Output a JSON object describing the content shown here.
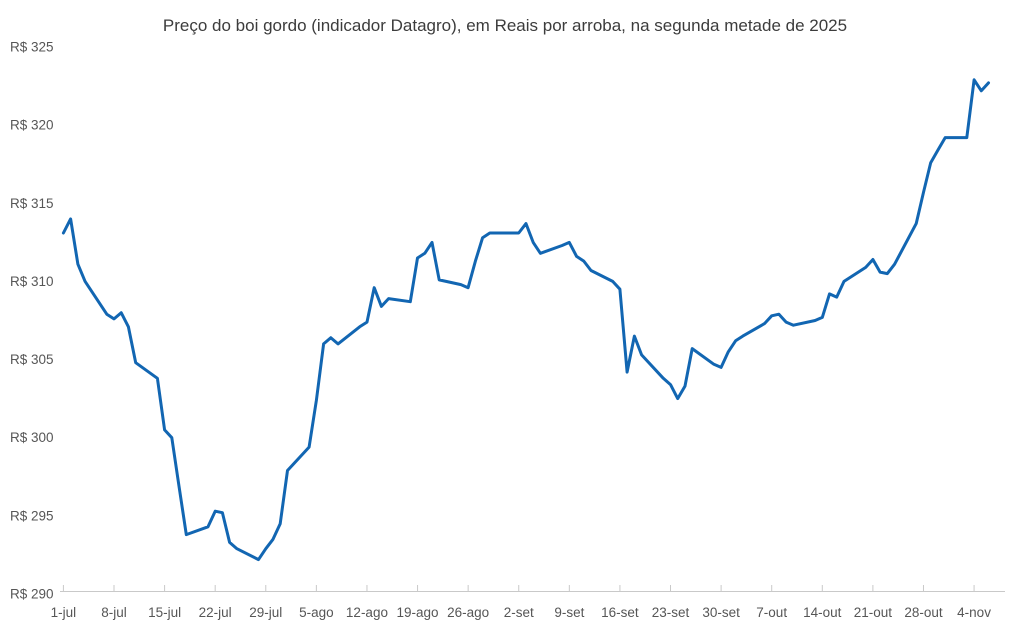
{
  "title": "Preço do boi gordo (indicador Datagro), em Reais por arroba, na segunda metade de 2025",
  "chart_data": {
    "type": "line",
    "title": "Preço do boi gordo (indicador Datagro), em Reais por arroba, na segunda metade de 2025",
    "currency_prefix": "R$",
    "unit": "Reais por arroba",
    "grid": false,
    "legend": false,
    "line_color": "#1266b2",
    "background_color": "#ffffff",
    "y_axis": {
      "min": 290,
      "max": 325,
      "tick_step": 5,
      "ticks": [
        {
          "value": 325,
          "label": "R$ 325"
        },
        {
          "value": 320,
          "label": "R$ 320"
        },
        {
          "value": 315,
          "label": "R$ 315"
        },
        {
          "value": 310,
          "label": "R$ 310"
        },
        {
          "value": 305,
          "label": "R$ 305"
        },
        {
          "value": 300,
          "label": "R$ 300"
        },
        {
          "value": 295,
          "label": "R$ 295"
        },
        {
          "value": 290,
          "label": "R$ 290"
        }
      ]
    },
    "x_axis": {
      "start_date": "2025-07-01",
      "end_date": "2025-11-06",
      "ticks": [
        {
          "date": "2025-07-01",
          "label": "1-jul"
        },
        {
          "date": "2025-07-08",
          "label": "8-jul"
        },
        {
          "date": "2025-07-15",
          "label": "15-jul"
        },
        {
          "date": "2025-07-22",
          "label": "22-jul"
        },
        {
          "date": "2025-07-29",
          "label": "29-jul"
        },
        {
          "date": "2025-08-05",
          "label": "5-ago"
        },
        {
          "date": "2025-08-12",
          "label": "12-ago"
        },
        {
          "date": "2025-08-19",
          "label": "19-ago"
        },
        {
          "date": "2025-08-26",
          "label": "26-ago"
        },
        {
          "date": "2025-09-02",
          "label": "2-set"
        },
        {
          "date": "2025-09-09",
          "label": "9-set"
        },
        {
          "date": "2025-09-16",
          "label": "16-set"
        },
        {
          "date": "2025-09-23",
          "label": "23-set"
        },
        {
          "date": "2025-09-30",
          "label": "30-set"
        },
        {
          "date": "2025-10-07",
          "label": "7-out"
        },
        {
          "date": "2025-10-14",
          "label": "14-out"
        },
        {
          "date": "2025-10-21",
          "label": "21-out"
        },
        {
          "date": "2025-10-28",
          "label": "28-out"
        },
        {
          "date": "2025-11-04",
          "label": "4-nov"
        }
      ]
    },
    "series": [
      {
        "name": "Preço do boi gordo (R$/arroba)",
        "points": [
          [
            "2025-07-01",
            313.1
          ],
          [
            "2025-07-02",
            314.0
          ],
          [
            "2025-07-03",
            311.1
          ],
          [
            "2025-07-04",
            310.0
          ],
          [
            "2025-07-07",
            307.9
          ],
          [
            "2025-07-08",
            307.6
          ],
          [
            "2025-07-09",
            308.0
          ],
          [
            "2025-07-10",
            307.1
          ],
          [
            "2025-07-11",
            304.8
          ],
          [
            "2025-07-14",
            303.8
          ],
          [
            "2025-07-15",
            300.5
          ],
          [
            "2025-07-16",
            300.0
          ],
          [
            "2025-07-17",
            296.9
          ],
          [
            "2025-07-18",
            293.8
          ],
          [
            "2025-07-21",
            294.3
          ],
          [
            "2025-07-22",
            295.3
          ],
          [
            "2025-07-23",
            295.2
          ],
          [
            "2025-07-24",
            293.3
          ],
          [
            "2025-07-25",
            292.9
          ],
          [
            "2025-07-28",
            292.2
          ],
          [
            "2025-07-29",
            292.9
          ],
          [
            "2025-07-30",
            293.5
          ],
          [
            "2025-07-31",
            294.5
          ],
          [
            "2025-08-01",
            297.9
          ],
          [
            "2025-08-04",
            299.4
          ],
          [
            "2025-08-05",
            302.4
          ],
          [
            "2025-08-06",
            306.0
          ],
          [
            "2025-08-07",
            306.4
          ],
          [
            "2025-08-08",
            306.0
          ],
          [
            "2025-08-11",
            307.1
          ],
          [
            "2025-08-12",
            307.4
          ],
          [
            "2025-08-13",
            309.6
          ],
          [
            "2025-08-14",
            308.4
          ],
          [
            "2025-08-15",
            308.9
          ],
          [
            "2025-08-18",
            308.7
          ],
          [
            "2025-08-19",
            311.5
          ],
          [
            "2025-08-20",
            311.8
          ],
          [
            "2025-08-21",
            312.5
          ],
          [
            "2025-08-22",
            310.1
          ],
          [
            "2025-08-25",
            309.8
          ],
          [
            "2025-08-26",
            309.6
          ],
          [
            "2025-08-27",
            311.3
          ],
          [
            "2025-08-28",
            312.8
          ],
          [
            "2025-08-29",
            313.1
          ],
          [
            "2025-09-01",
            313.1
          ],
          [
            "2025-09-02",
            313.1
          ],
          [
            "2025-09-03",
            313.7
          ],
          [
            "2025-09-04",
            312.5
          ],
          [
            "2025-09-05",
            311.8
          ],
          [
            "2025-09-08",
            312.3
          ],
          [
            "2025-09-09",
            312.5
          ],
          [
            "2025-09-10",
            311.6
          ],
          [
            "2025-09-11",
            311.3
          ],
          [
            "2025-09-12",
            310.7
          ],
          [
            "2025-09-15",
            310.0
          ],
          [
            "2025-09-16",
            309.5
          ],
          [
            "2025-09-17",
            304.2
          ],
          [
            "2025-09-18",
            306.5
          ],
          [
            "2025-09-19",
            305.3
          ],
          [
            "2025-09-22",
            303.8
          ],
          [
            "2025-09-23",
            303.4
          ],
          [
            "2025-09-24",
            302.5
          ],
          [
            "2025-09-25",
            303.3
          ],
          [
            "2025-09-26",
            305.7
          ],
          [
            "2025-09-29",
            304.7
          ],
          [
            "2025-09-30",
            304.5
          ],
          [
            "2025-10-01",
            305.5
          ],
          [
            "2025-10-02",
            306.2
          ],
          [
            "2025-10-03",
            306.5
          ],
          [
            "2025-10-06",
            307.3
          ],
          [
            "2025-10-07",
            307.8
          ],
          [
            "2025-10-08",
            307.9
          ],
          [
            "2025-10-09",
            307.4
          ],
          [
            "2025-10-10",
            307.2
          ],
          [
            "2025-10-13",
            307.5
          ],
          [
            "2025-10-14",
            307.7
          ],
          [
            "2025-10-15",
            309.2
          ],
          [
            "2025-10-16",
            309.0
          ],
          [
            "2025-10-17",
            310.0
          ],
          [
            "2025-10-20",
            310.9
          ],
          [
            "2025-10-21",
            311.4
          ],
          [
            "2025-10-22",
            310.6
          ],
          [
            "2025-10-23",
            310.5
          ],
          [
            "2025-10-24",
            311.1
          ],
          [
            "2025-10-27",
            313.7
          ],
          [
            "2025-10-28",
            315.7
          ],
          [
            "2025-10-29",
            317.6
          ],
          [
            "2025-10-30",
            318.4
          ],
          [
            "2025-10-31",
            319.2
          ],
          [
            "2025-11-03",
            319.2
          ],
          [
            "2025-11-04",
            322.9
          ],
          [
            "2025-11-05",
            322.2
          ],
          [
            "2025-11-06",
            322.7
          ]
        ]
      }
    ]
  }
}
